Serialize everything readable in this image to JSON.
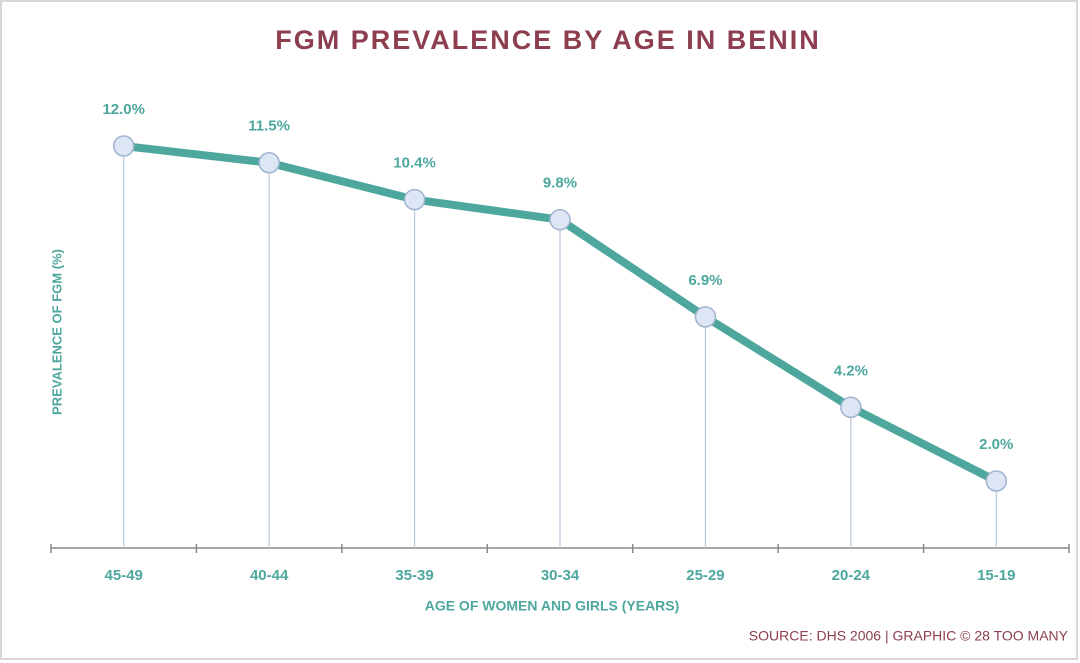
{
  "chart_data": {
    "type": "line",
    "title": "FGM PREVALENCE BY AGE IN BENIN",
    "x_label": "AGE OF WOMEN AND GIRLS (YEARS)",
    "y_label": "PREVALENCE OF FGM (%)",
    "source": "SOURCE: DHS 2006 | GRAPHIC © 28 TOO MANY",
    "categories": [
      "45-49",
      "40-44",
      "35-39",
      "30-34",
      "25-29",
      "20-24",
      "15-19"
    ],
    "values": [
      12.0,
      11.5,
      10.4,
      9.8,
      6.9,
      4.2,
      2.0
    ],
    "value_labels": [
      "12.0%",
      "11.5%",
      "10.4%",
      "9.8%",
      "6.9%",
      "4.2%",
      "2.0%"
    ],
    "color": "#4da79d",
    "ylim": [
      0,
      14
    ]
  }
}
